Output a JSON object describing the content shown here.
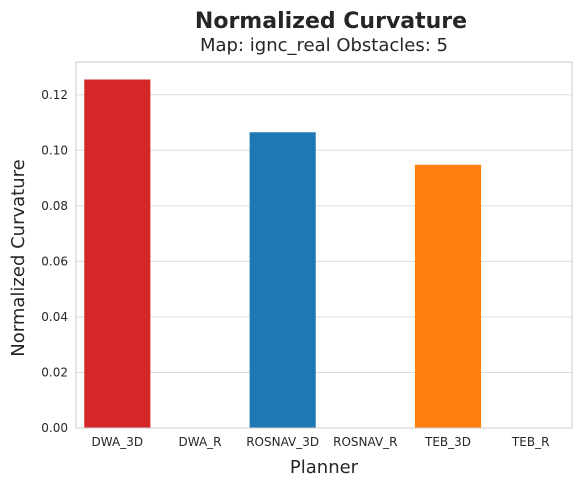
{
  "chart_data": {
    "type": "bar",
    "title": "Normalized Curvature",
    "subtitle": "Map: ignc_real Obstacles: 5",
    "xlabel": "Planner",
    "ylabel": "Normalized Curvature",
    "categories": [
      "DWA_3D",
      "DWA_R",
      "ROSNAV_3D",
      "ROSNAV_R",
      "TEB_3D",
      "TEB_R"
    ],
    "values": [
      0.1255,
      0,
      0.1065,
      0,
      0.0948,
      0
    ],
    "colors": [
      "#d62728",
      "#d62728",
      "#1f77b4",
      "#1f77b4",
      "#ff7f0e",
      "#ff7f0e"
    ],
    "ylim": [
      0,
      0.1318
    ],
    "yticks": [
      "0.00",
      "0.02",
      "0.04",
      "0.06",
      "0.08",
      "0.10",
      "0.12"
    ],
    "ytick_values": [
      0,
      0.02,
      0.04,
      0.06,
      0.08,
      0.1,
      0.12
    ],
    "grid": true,
    "legend": "none"
  }
}
